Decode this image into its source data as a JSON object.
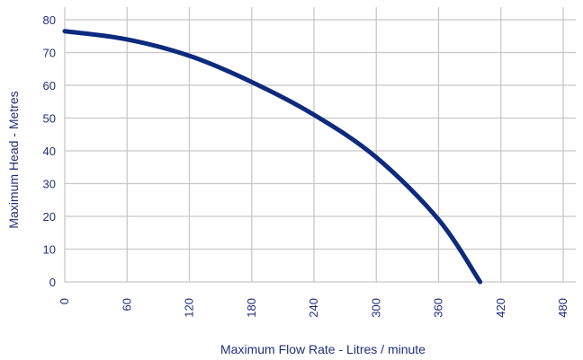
{
  "chart_data": {
    "type": "line",
    "title": "",
    "xlabel": "Maximum Flow Rate - Litres / minute",
    "ylabel": "Maximum Head - Metres",
    "xlim": [
      0,
      480
    ],
    "ylim": [
      0,
      80
    ],
    "x_ticks": [
      0,
      60,
      120,
      180,
      240,
      300,
      360,
      420,
      480
    ],
    "y_ticks": [
      0,
      10,
      20,
      30,
      40,
      50,
      60,
      70,
      80
    ],
    "grid": true,
    "legend": "none",
    "colors": {
      "line": "#0d2a7e",
      "grid": "#c8c8c8",
      "text": "#1f2f7a"
    },
    "series": [
      {
        "x": [
          0,
          60,
          120,
          180,
          240,
          300,
          360,
          400
        ],
        "y": [
          76.5,
          74,
          69,
          61,
          51,
          38,
          19,
          0
        ]
      }
    ]
  }
}
